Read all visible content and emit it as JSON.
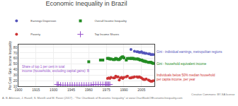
{
  "chart_data": {
    "type": "scatter",
    "title": "Economic Inequality in Brazil",
    "ylabel": "Per Cent - Gini - Income Inequality",
    "xlim": [
      1900,
      2016
    ],
    "ylim": [
      10,
      85
    ],
    "xticks": [
      1900,
      1915,
      1930,
      1945,
      1960,
      1975,
      1990,
      2005
    ],
    "yticks": [
      10,
      20,
      30,
      40,
      50,
      60,
      70,
      80
    ],
    "grid": true,
    "legend": "top",
    "series": [
      {
        "name": "Earnings Dispersion",
        "color": "#5555bb",
        "marker": "circle",
        "x": [
          1996,
          1999,
          2001,
          2002,
          2003,
          2004,
          2005,
          2006,
          2007,
          2008,
          2009,
          2011,
          2012,
          2013,
          2014,
          2015
        ],
        "values": [
          76,
          73,
          72,
          72,
          71,
          71,
          72,
          70,
          70,
          69,
          69,
          68,
          68,
          67,
          67,
          67
        ]
      },
      {
        "name": "Overall Income Inequality",
        "color": "#228B22",
        "marker": "square",
        "x": [
          1960,
          1970,
          1972,
          1976,
          1977,
          1978,
          1979,
          1981,
          1982,
          1983,
          1984,
          1985,
          1986,
          1987,
          1988,
          1989,
          1990,
          1992,
          1993,
          1995,
          1996,
          1997,
          1998,
          1999,
          2001,
          2002,
          2003,
          2004,
          2005,
          2006,
          2007,
          2008,
          2009,
          2011,
          2012,
          2013,
          2014,
          2015
        ],
        "values": [
          54,
          57,
          57,
          60,
          60,
          59,
          59,
          58,
          58,
          60,
          59,
          58,
          58,
          60,
          62,
          63,
          61,
          57,
          60,
          60,
          60,
          60,
          60,
          59,
          59,
          59,
          58,
          57,
          57,
          56,
          55,
          55,
          54,
          53,
          53,
          53,
          52,
          51
        ]
      },
      {
        "name": "Poverty",
        "color": "#cc3333",
        "marker": "circle",
        "x": [
          1976,
          1977,
          1978,
          1979,
          1981,
          1982,
          1983,
          1984,
          1985,
          1986,
          1987,
          1988,
          1989,
          1990,
          1992,
          1993,
          1995,
          1996,
          1997,
          1998,
          1999,
          2001,
          2002,
          2003,
          2004,
          2005,
          2006,
          2007,
          2008,
          2009,
          2011,
          2012,
          2013,
          2014,
          2015
        ],
        "values": [
          24,
          25,
          24,
          26,
          25,
          25,
          28,
          27,
          27,
          21,
          25,
          26,
          24,
          26,
          27,
          28,
          25,
          25,
          26,
          26,
          27,
          27,
          26,
          27,
          26,
          25,
          23,
          22,
          22,
          23,
          21,
          20,
          19,
          19,
          20
        ]
      },
      {
        "name": "Top Income Shares",
        "color": "#9955cc",
        "marker": "plus",
        "x": [
          1933,
          1934,
          1936,
          1938,
          1940,
          1942,
          1944,
          1946,
          1948,
          1950,
          1952,
          1954,
          1956,
          1958,
          1960,
          1962,
          1964,
          1966,
          1968,
          1970,
          1972,
          1974,
          1975,
          1976,
          1977,
          1978
        ],
        "values": [
          13,
          13,
          12,
          12,
          12,
          12,
          12,
          12,
          12,
          12,
          12,
          12,
          12,
          12,
          12,
          12,
          13,
          13,
          13,
          13,
          13,
          13,
          13,
          13,
          13,
          13
        ]
      }
    ],
    "annotations": [
      {
        "text": "Gini - individual earnings, metropolitan regions",
        "color": "#5555bb"
      },
      {
        "text": "Gini - household equivalent income",
        "color": "#228B22"
      },
      {
        "text": "Individuals below 50% median household\nper capita income, per year",
        "color": "#cc3333"
      },
      {
        "text": "Share of top 1 per cent in total\nincome (households, excluding capital gains): B",
        "color": "#9955cc"
      }
    ],
    "footnotes": [
      "A. B. Atkinson, J. Hasell, S. Morelli and M. Roser (2017) - \"The Chartbook of Economic Inequality\" at www.ChartBookOfEconomicInequality.com",
      "Creative Commons: BY-SA license"
    ]
  }
}
